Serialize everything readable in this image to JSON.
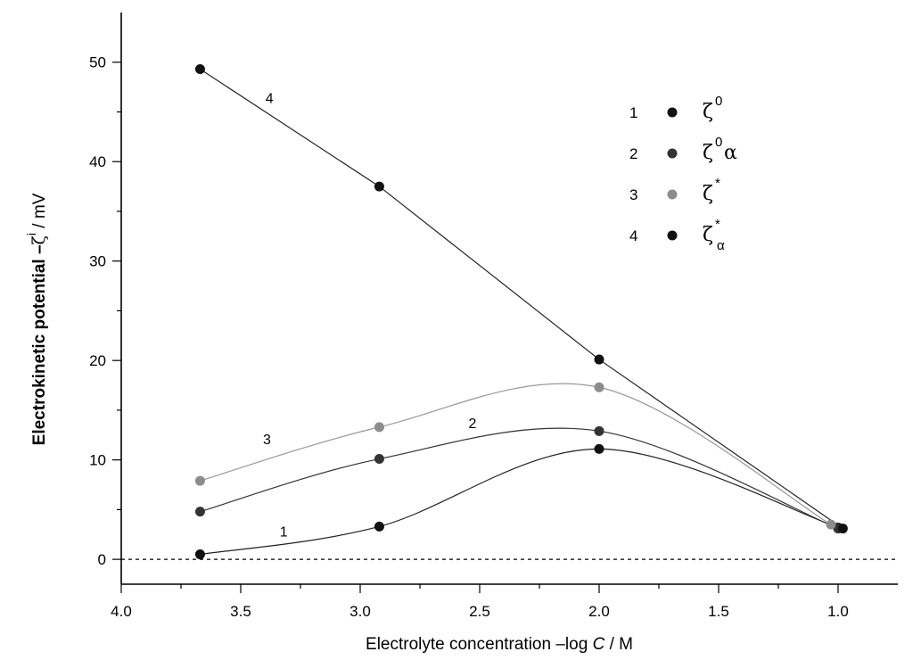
{
  "chart_data": {
    "type": "line",
    "title": "",
    "xlabel": "Electrolyte concentration –log C / M",
    "xlabel_parts": {
      "main": "Electrolyte concentration –log ",
      "italic": "C",
      "unit": " / M"
    },
    "ylabel": "Electrokinetic  potential –ζ i / mV",
    "ylabel_parts": {
      "main": "Electrokinetic  potential –",
      "symbol": "ζ",
      "sup": "i",
      "unit": " / mV"
    },
    "xlim": [
      4.0,
      0.75
    ],
    "ylim": [
      -2.5,
      55
    ],
    "x_ticks": [
      4.0,
      3.5,
      3.0,
      2.5,
      2.0,
      1.5,
      1.0
    ],
    "x_tick_labels": [
      "4.0",
      "3.5",
      "3.0",
      "2.5",
      "2.0",
      "1.5",
      "1.0"
    ],
    "y_ticks": [
      0,
      10,
      20,
      30,
      40,
      50
    ],
    "y_tick_labels": [
      "0",
      "10",
      "20",
      "30",
      "40",
      "50"
    ],
    "zero_line": true,
    "grid": false,
    "legend_position": "top-right",
    "series": [
      {
        "name": "ζ 0",
        "id": "1",
        "label": "1",
        "color": "#111111",
        "line_color": "#222222",
        "smooth": true,
        "x": [
          3.67,
          2.92,
          2.0,
          1.0
        ],
        "y": [
          0.5,
          3.3,
          11.1,
          3.2
        ]
      },
      {
        "name": "ζ 0 α",
        "id": "2",
        "label": "2",
        "color": "#333333",
        "line_color": "#333333",
        "smooth": true,
        "x": [
          3.67,
          2.92,
          2.0,
          1.0
        ],
        "y": [
          4.8,
          10.1,
          12.9,
          3.1
        ]
      },
      {
        "name": "ζ *",
        "id": "3",
        "label": "3",
        "color": "#8c8c8c",
        "line_color": "#999999",
        "smooth": true,
        "x": [
          3.67,
          2.92,
          2.0,
          1.03
        ],
        "y": [
          7.9,
          13.3,
          17.3,
          3.5
        ]
      },
      {
        "name": "ζ * α",
        "id": "4",
        "label": "4",
        "color": "#111111",
        "line_color": "#222222",
        "smooth": false,
        "x": [
          3.67,
          2.92,
          2.0,
          0.98
        ],
        "y": [
          49.3,
          37.5,
          20.1,
          3.1
        ]
      }
    ],
    "series_labels": [
      {
        "text": "1",
        "at": [
          3.32,
          2.3
        ]
      },
      {
        "text": "2",
        "at": [
          2.53,
          13.2
        ]
      },
      {
        "text": "3",
        "at": [
          3.39,
          11.6
        ]
      },
      {
        "text": "4",
        "at": [
          3.38,
          45.9
        ]
      }
    ],
    "legend": [
      {
        "num": "1",
        "color": "#111111",
        "symbol": "ζ",
        "sup": "0",
        "suffix": "",
        "sub": ""
      },
      {
        "num": "2",
        "color": "#333333",
        "symbol": "ζ",
        "sup": "0",
        "suffix": "α",
        "sub": ""
      },
      {
        "num": "3",
        "color": "#8c8c8c",
        "symbol": "ζ",
        "sup": "*",
        "suffix": "",
        "sub": ""
      },
      {
        "num": "4",
        "color": "#111111",
        "symbol": "ζ",
        "sup": "*",
        "suffix": "",
        "sub": "α"
      }
    ]
  }
}
